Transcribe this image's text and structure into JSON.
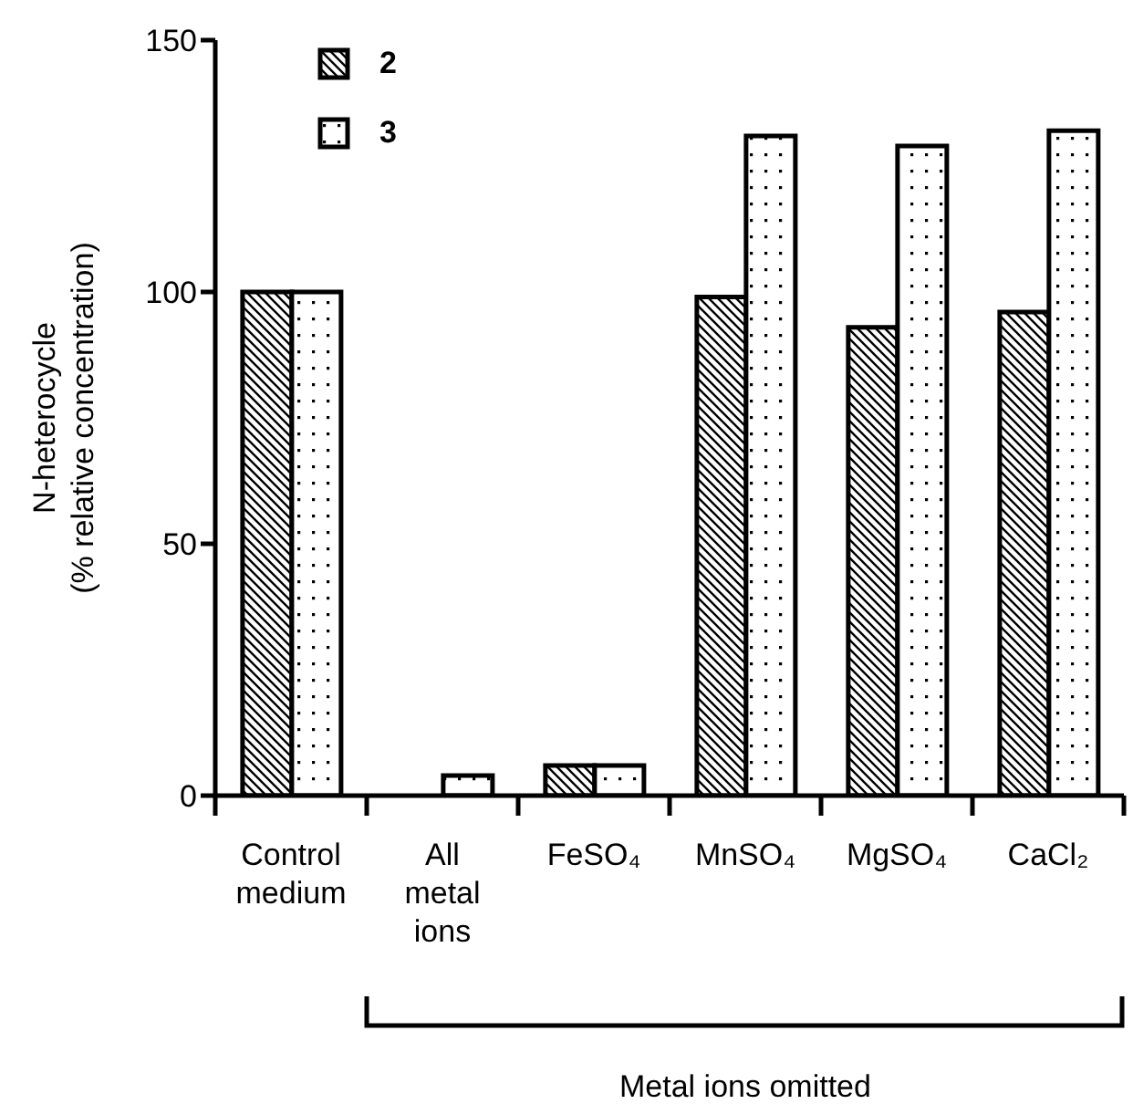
{
  "chart_data": {
    "type": "bar",
    "ylabel": "N-heterocycle (% relative concentration)",
    "categories": [
      "Control medium",
      "All metal ions",
      "FeSO₄",
      "MnSO₄",
      "MgSO₄",
      "CaCl₂"
    ],
    "series": [
      {
        "name": "2",
        "color": "#000000",
        "values": [
          100,
          0,
          6,
          99,
          93,
          96
        ]
      },
      {
        "name": "3",
        "color": "#000000",
        "values": [
          100,
          4,
          6,
          131,
          129,
          132
        ]
      }
    ],
    "ylim": [
      0,
      150
    ],
    "yticks": [
      0,
      50,
      100,
      150
    ],
    "grid": false,
    "legend": "top left",
    "annotations": [
      "Metal ions omitted"
    ]
  }
}
